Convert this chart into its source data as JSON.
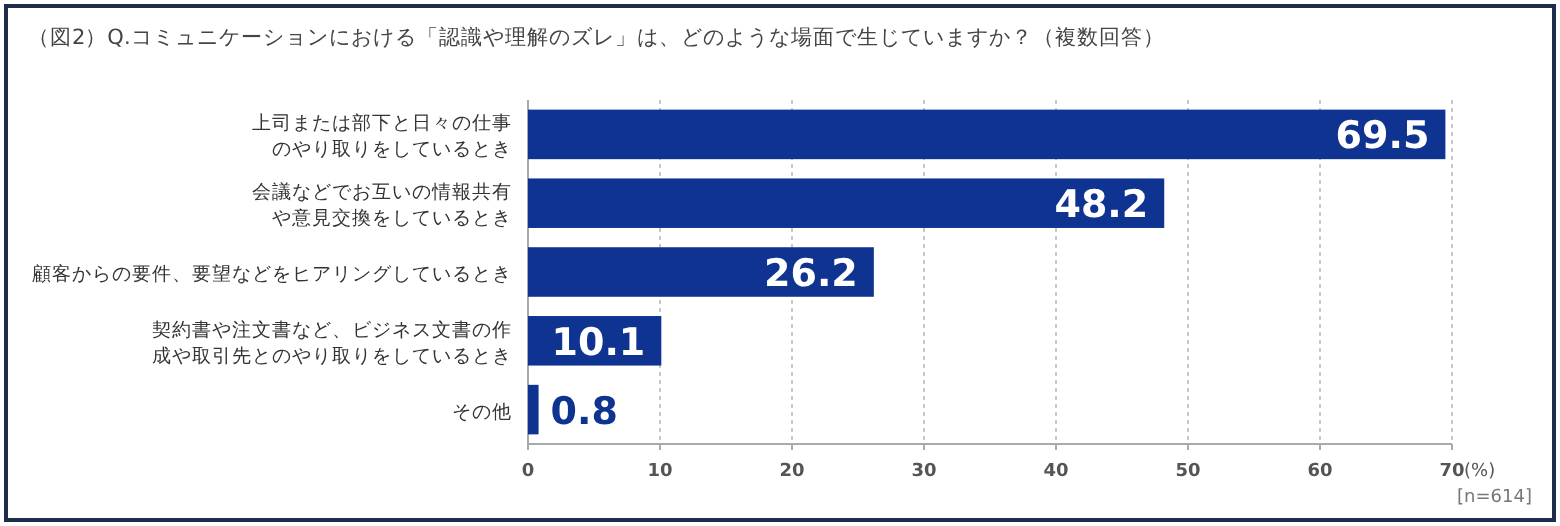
{
  "chart_data": {
    "type": "bar",
    "orientation": "horizontal",
    "title": "（図2）Q.コミュニケーションにおける「認識や理解のズレ」は、どのような場面で生じていますか？（複数回答）",
    "categories": [
      "上司または部下と日々の仕事のやり取りをしているとき",
      "会議などでお互いの情報共有や意見交換をしているとき",
      "顧客からの要件、要望などをヒアリングしているとき",
      "契約書や注文書など、ビジネス文書の作成や取引先とのやり取りをしているとき",
      "その他"
    ],
    "values": [
      69.5,
      48.2,
      26.2,
      10.1,
      0.8
    ],
    "color": "#0f3391",
    "xlim": [
      0,
      70
    ],
    "xticks": [
      0,
      10,
      20,
      30,
      40,
      50,
      60,
      70
    ],
    "xlabel": "(%)",
    "grid": "x",
    "data_labels": true,
    "annotations": [
      "[n=614]"
    ]
  }
}
